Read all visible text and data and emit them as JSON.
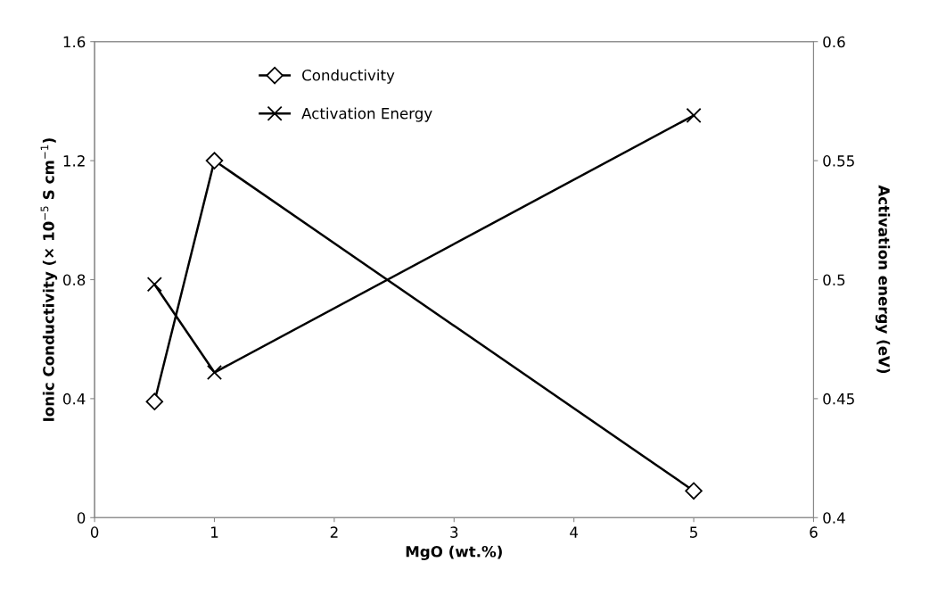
{
  "chart_data": {
    "type": "line",
    "xlabel": "MgO (wt.%)",
    "ylabel": "Ionic Conductivity (× 10$^{−5}$ S cm$^{−1}$)",
    "y2label": "Activation energy (eV)",
    "x": [
      0.5,
      1,
      5
    ],
    "series": [
      {
        "name": "Conductivity",
        "color": "#000000",
        "values": [
          0.39,
          1.2,
          0.09
        ],
        "marker": "diamond"
      },
      {
        "name": "Activation Energy",
        "color": "#000000",
        "values": [
          0.498,
          0.461,
          0.569
        ],
        "marker": "cross",
        "axis": "y2"
      }
    ],
    "xlim": [
      0,
      6
    ],
    "xticks": [
      0,
      1,
      2,
      3,
      4,
      5,
      6
    ],
    "ylim": [
      0,
      1.6
    ],
    "yticks": [
      0,
      0.4,
      0.8,
      1.2,
      1.6
    ],
    "y2lim": [
      0.4,
      0.6
    ],
    "y2ticks": [
      0.4,
      0.45,
      0.5,
      0.55,
      0.6
    ],
    "grid": false,
    "legend": "top",
    "line_style": "solid"
  }
}
